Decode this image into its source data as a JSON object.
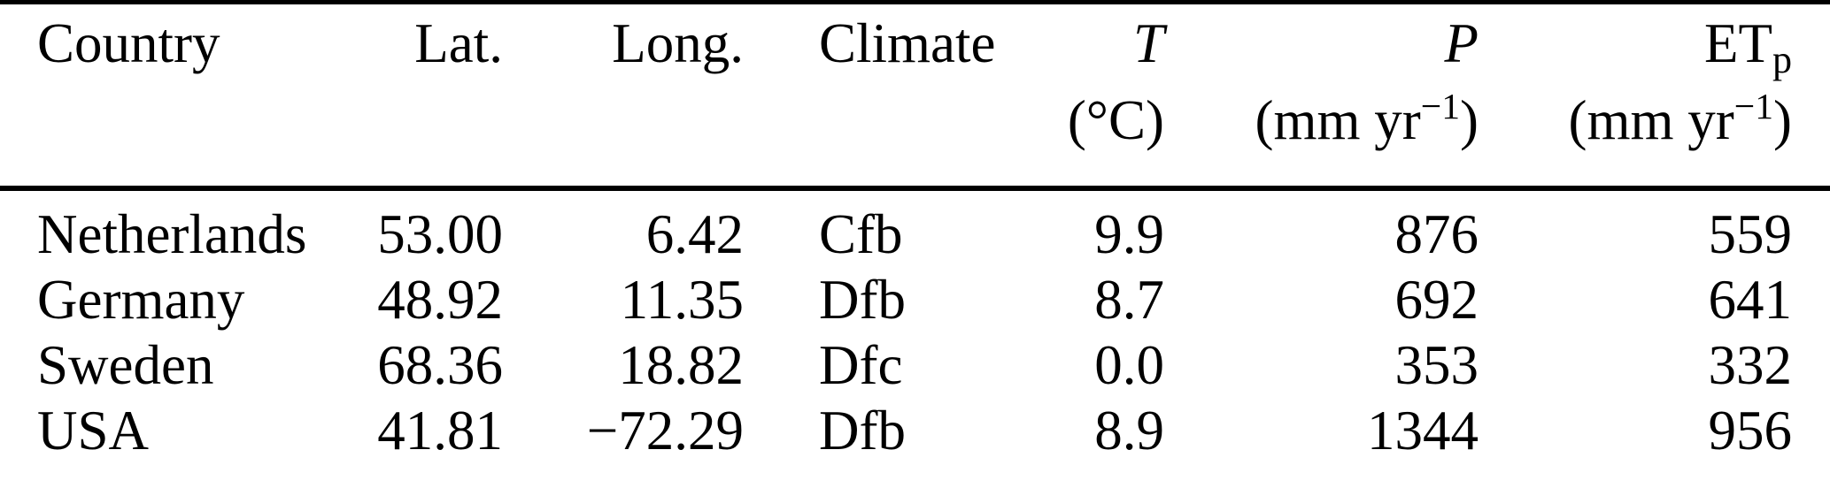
{
  "colors": {
    "text": "#000000",
    "background": "#ffffff",
    "rule": "#000000"
  },
  "table": {
    "header": {
      "country": "Country",
      "lat": "Lat.",
      "long": "Long.",
      "climate": "Climate",
      "t_label": "T",
      "t_unit": "(°C)",
      "p_label": "P",
      "etp_base": "ET",
      "etp_sub": "p",
      "mm_unit_open": "(mm yr",
      "mm_unit_sup": "−1",
      "mm_unit_close": ")"
    },
    "rows": [
      {
        "country": "Netherlands",
        "lat": "53.00",
        "long": "6.42",
        "climate": "Cfb",
        "t": "9.9",
        "p": "876",
        "etp": "559"
      },
      {
        "country": "Germany",
        "lat": "48.92",
        "long": "11.35",
        "climate": "Dfb",
        "t": "8.7",
        "p": "692",
        "etp": "641"
      },
      {
        "country": "Sweden",
        "lat": "68.36",
        "long": "18.82",
        "climate": "Dfc",
        "t": "0.0",
        "p": "353",
        "etp": "332"
      },
      {
        "country": "USA",
        "lat": "41.81",
        "long": "−72.29",
        "climate": "Dfb",
        "t": "8.9",
        "p": "1344",
        "etp": "956"
      }
    ]
  }
}
